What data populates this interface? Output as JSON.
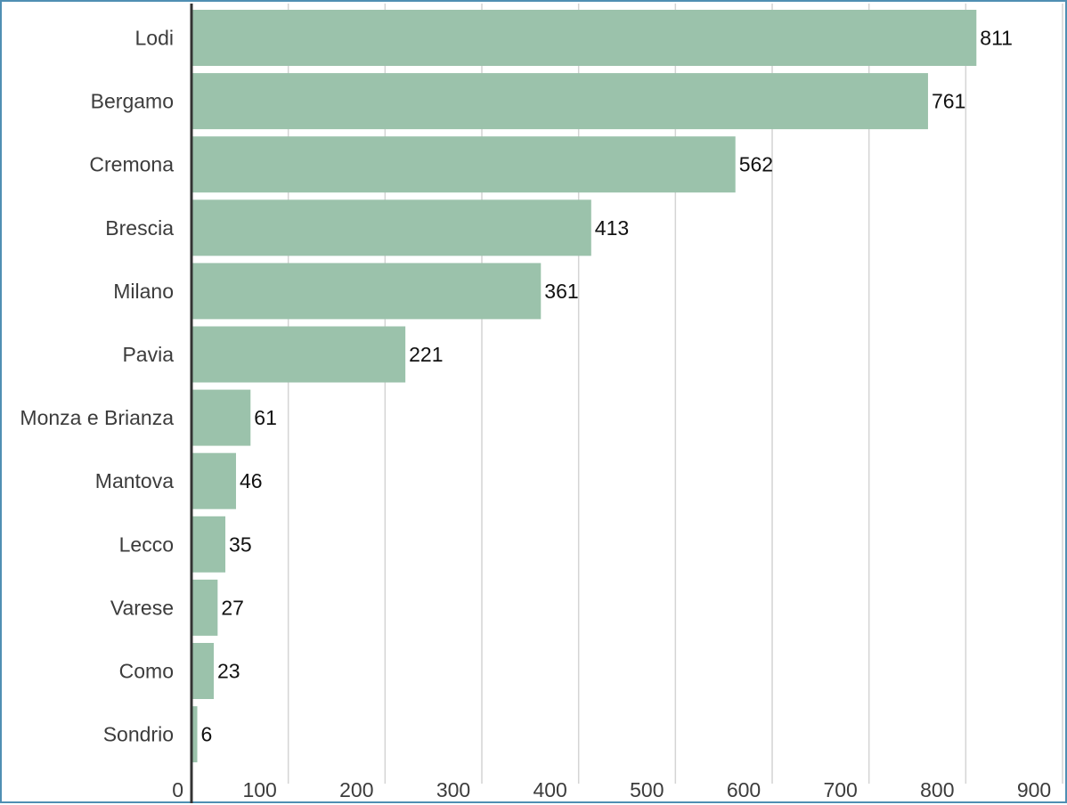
{
  "chart_data": {
    "type": "bar",
    "orientation": "horizontal",
    "title": "",
    "xlabel": "",
    "ylabel": "",
    "categories": [
      "Lodi",
      "Bergamo",
      "Cremona",
      "Brescia",
      "Milano",
      "Pavia",
      "Monza e Brianza",
      "Mantova",
      "Lecco",
      "Varese",
      "Como",
      "Sondrio"
    ],
    "values": [
      811,
      761,
      562,
      413,
      361,
      221,
      61,
      46,
      35,
      27,
      23,
      6
    ],
    "data_labels": [
      "811",
      "761",
      "562",
      "413",
      "361",
      "221",
      "61",
      "46",
      "35",
      "27",
      "23",
      "6"
    ],
    "xlim": [
      0,
      900
    ],
    "xticks": [
      0,
      100,
      200,
      300,
      400,
      500,
      600,
      700,
      800,
      900
    ],
    "xtick_labels": [
      "0",
      "100",
      "200",
      "300",
      "400",
      "500",
      "600",
      "700",
      "800",
      "900"
    ],
    "grid": "vertical",
    "legend": "none",
    "colors": {
      "bar": "#9bc2ab",
      "gridline": "#d4d4d4",
      "axis": "#333333",
      "frame": "#4f8fb3"
    }
  }
}
